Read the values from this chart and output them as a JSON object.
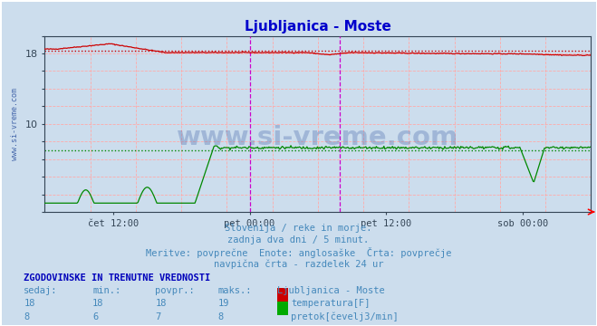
{
  "title": "Ljubljanica - Moste",
  "title_color": "#0000cc",
  "fig_bg_color": "#ccdded",
  "plot_bg_color": "#ccdded",
  "x_tick_labels": [
    "čet 12:00",
    "pet 00:00",
    "pet 12:00",
    "sob 00:00"
  ],
  "x_tick_positions": [
    0.125,
    0.375,
    0.625,
    0.875
  ],
  "ylim": [
    0,
    20
  ],
  "temp_color": "#cc0000",
  "flow_color": "#008800",
  "avg_temp": 18.3,
  "avg_flow": 7.0,
  "vline_color": "#cc00cc",
  "grid_color": "#ffaaaa",
  "subtitle_lines": [
    "Slovenija / reke in morje.",
    "zadnja dva dni / 5 minut.",
    "Meritve: povprečne  Enote: anglosaške  Črta: povprečje",
    "navpična črta - razdelek 24 ur"
  ],
  "subtitle_color": "#4488bb",
  "table_header": "ZGODOVINSKE IN TRENUTNE VREDNOSTI",
  "table_cols": [
    "sedaj:",
    "min.:",
    "povpr.:",
    "maks.:",
    "Ljubljanica - Moste"
  ],
  "table_row1": [
    "18",
    "18",
    "18",
    "19"
  ],
  "table_row2": [
    "8",
    "6",
    "7",
    "8"
  ],
  "legend_label1": "temperatura[F]",
  "legend_label2": "pretok[čevelj3/min]",
  "watermark": "www.si-vreme.com",
  "watermark_color": "#4466aa",
  "ylabel_text": "www.si-vreme.com",
  "ylabel_color": "#4466aa",
  "n_points": 576,
  "border_color": "#334455",
  "axis_color": "#334455",
  "tick_label_color": "#334455"
}
